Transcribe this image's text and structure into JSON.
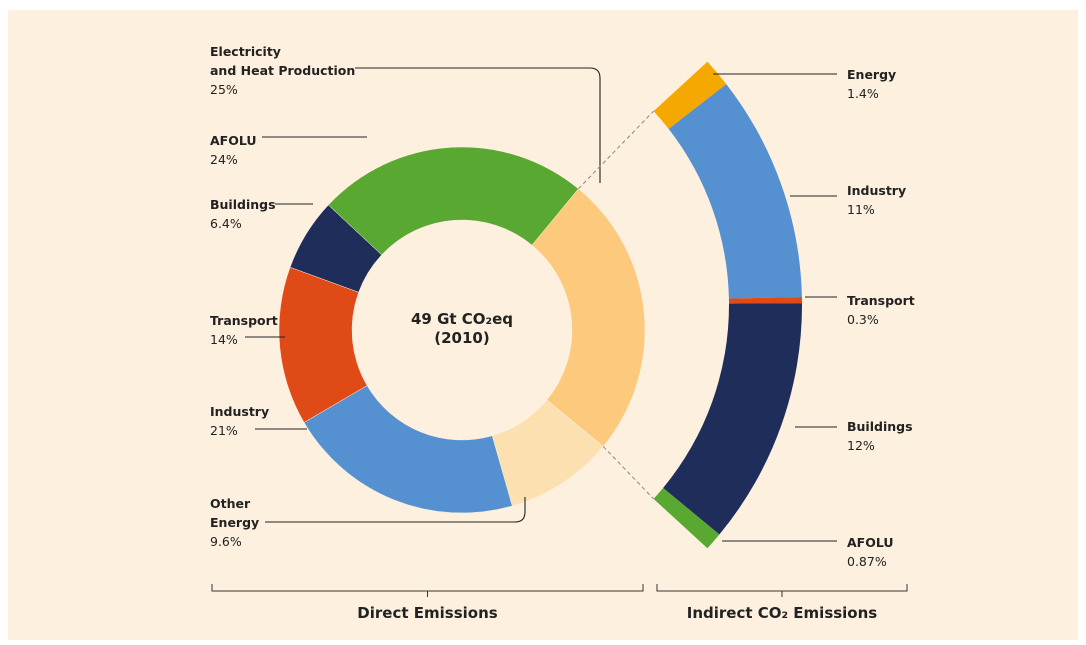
{
  "chart_data": [
    {
      "type": "donut",
      "title": "Direct Emissions",
      "center_label": [
        "49 Gt CO₂eq",
        "(2010)"
      ],
      "categories": [
        "Electricity\nand Heat Production",
        "Other\nEnergy",
        "Industry",
        "Transport",
        "Buildings",
        "AFOLU"
      ],
      "values": [
        25,
        9.6,
        21,
        14,
        6.4,
        24
      ],
      "value_labels": [
        "25%",
        "9.6%",
        "21%",
        "14%",
        "6.4%",
        "24%"
      ],
      "colors": [
        "#fdca7d",
        "#fde0b0",
        "#5591d1",
        "#e04a16",
        "#1f2d5a",
        "#59a832"
      ]
    },
    {
      "type": "arc",
      "title": "Indirect CO₂ Emissions",
      "categories": [
        "Energy",
        "Industry",
        "Transport",
        "Buildings",
        "AFOLU"
      ],
      "values": [
        1.4,
        11,
        0.3,
        12,
        0.87
      ],
      "value_labels": [
        "1.4%",
        "11%",
        "0.3%",
        "12%",
        "0.87%"
      ],
      "colors": [
        "#f5a800",
        "#5591d1",
        "#e04a16",
        "#1f2d5a",
        "#59a832"
      ]
    }
  ]
}
